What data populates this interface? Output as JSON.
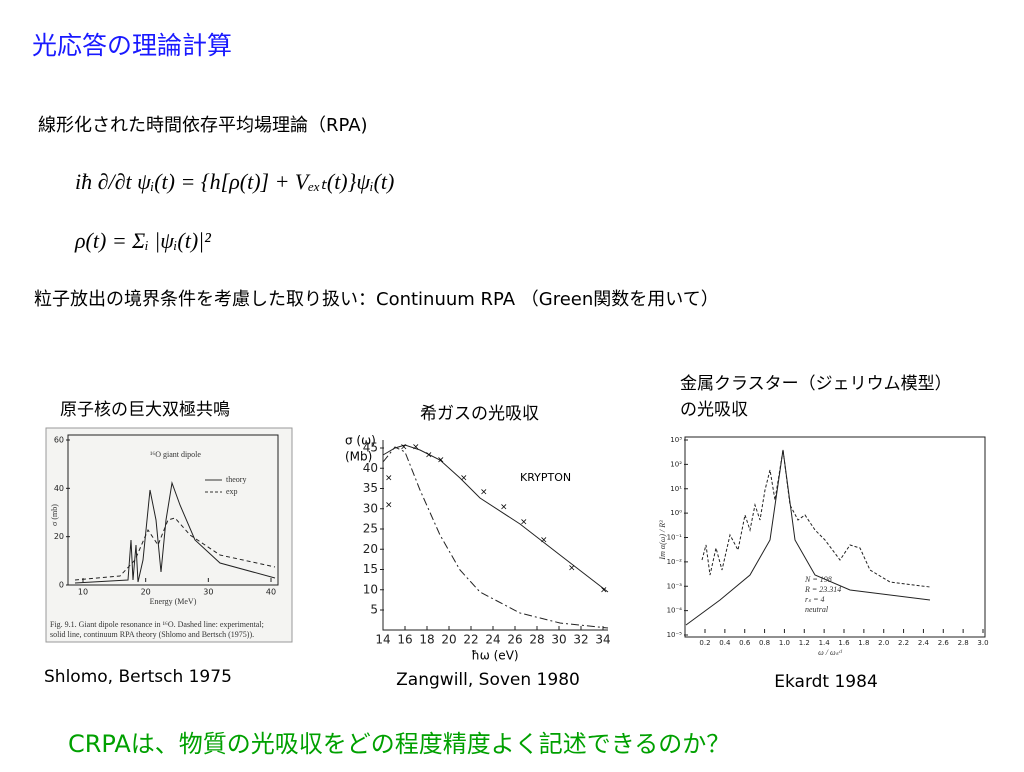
{
  "title": "光応答の理論計算",
  "subtitle": "線形化された時間依存平均場理論（RPA)",
  "equations": [
    "iħ ∂/∂t ψᵢ(t) = {h[ρ(t)] + Vₑₓₜ(t)}ψᵢ(t)",
    "ρ(t) = Σᵢ |ψᵢ(t)|²"
  ],
  "note": "粒子放出の境界条件を考慮した取り扱い：Continuum RPA （Green関数を用いて）",
  "figures": [
    {
      "heading": [
        "原子核の巨大双極共鳴"
      ],
      "citation": "Shlomo, Bertsch 1975",
      "plot_title": "¹⁶O giant dipole",
      "legend": [
        "theory",
        "exp"
      ],
      "xlabel": "Energy (MeV)",
      "ylabel": "σ (mb)",
      "xticks": [
        10,
        20,
        30,
        40
      ],
      "yticks": [
        0,
        20,
        40,
        60
      ],
      "caption": [
        "Fig. 9.1.   Giant dipole resonance in ¹⁶O. Dashed line: experimental;",
        "solid line, continuum RPA theory (Shlomo and Bertsch (1975))."
      ]
    },
    {
      "heading": [
        "希ガスの光吸収"
      ],
      "citation": "Zangwill, Soven 1980",
      "plot_title": "KRYPTON",
      "xlabel": "ħω (eV)",
      "ylabel": [
        "σ (ω)",
        "(Mb)"
      ],
      "xticks": [
        14,
        16,
        18,
        20,
        22,
        24,
        26,
        28,
        30,
        32,
        34
      ],
      "yticks": [
        45,
        40,
        35,
        30,
        25,
        20,
        15,
        10,
        5
      ]
    },
    {
      "heading": [
        "金属クラスター（ジェリウム模型）",
        "の光吸収"
      ],
      "citation": "Ekardt 1984",
      "legend_text": [
        "N = 198",
        "R = 23.314",
        "rₛ = 4",
        "neutral"
      ],
      "xlabel": "ω / ωₛᶜˡ",
      "ylabel": "Im α(ω) / R³",
      "xticks": [
        0.2,
        0.4,
        0.6,
        0.8,
        {
          "value": 1,
          "label": "1.0"
        },
        1.2,
        1.4,
        1.6,
        1.8,
        {
          "value": 2,
          "label": "2.0"
        },
        2.2,
        2.4,
        2.6,
        2.8,
        {
          "value": 3,
          "label": "3.0"
        }
      ],
      "yticks": [
        {
          "value": 3,
          "label": "10³"
        },
        {
          "value": 2,
          "label": "10²"
        },
        {
          "value": 1,
          "label": "10¹"
        },
        {
          "value": 0,
          "label": "10⁰"
        },
        {
          "value": -1,
          "label": "10⁻¹"
        },
        {
          "value": -2,
          "label": "10⁻²"
        },
        {
          "value": -3,
          "label": "10⁻³"
        },
        {
          "value": -4,
          "label": "10⁻⁴"
        },
        {
          "value": -5,
          "label": "10⁻⁵"
        }
      ]
    }
  ],
  "conclusion": "CRPAは、物質の光吸収をどの程度精度よく記述できるのか？"
}
